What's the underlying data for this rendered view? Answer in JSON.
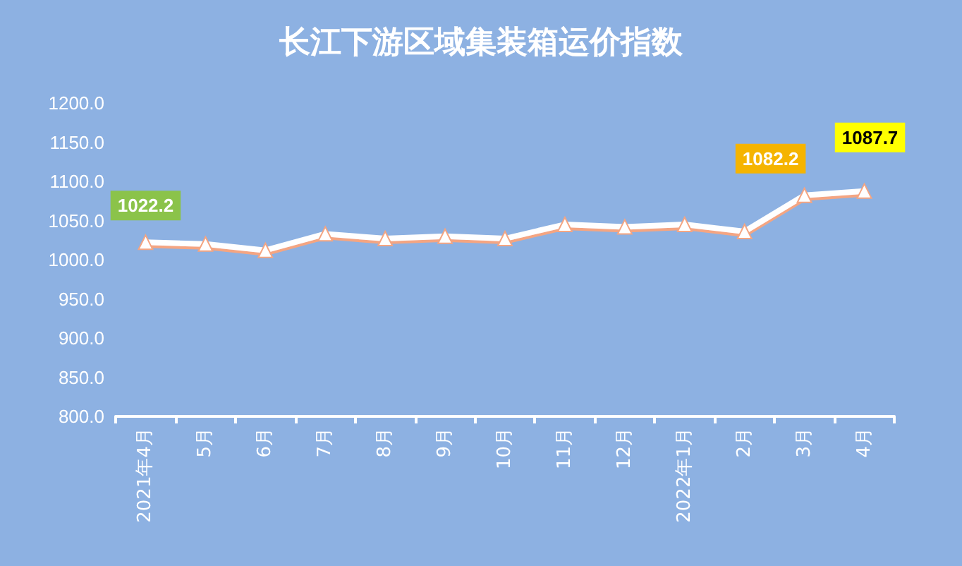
{
  "chart_data": {
    "type": "line",
    "title": "长江下游区域集装箱运价指数",
    "categories": [
      "2021年4月",
      "5月",
      "6月",
      "7月",
      "8月",
      "9月",
      "10月",
      "11月",
      "12月",
      "2022年1月",
      "2月",
      "3月",
      "4月"
    ],
    "series": [
      {
        "color": "#ffffff",
        "values": [
          1022.2,
          1020,
          1012,
          1033,
          1027,
          1030,
          1027,
          1045,
          1042,
          1045,
          1036,
          1082.2,
          1087.7
        ],
        "value_labels": [
          "1022.2",
          null,
          null,
          null,
          null,
          null,
          null,
          null,
          null,
          null,
          null,
          "1082.2",
          "1087.7"
        ]
      }
    ],
    "ylim": [
      800,
      1200
    ],
    "yticks": [
      {
        "value": 800,
        "label": "800.0"
      },
      {
        "value": 850,
        "label": "850.0"
      },
      {
        "value": 900,
        "label": "900.0"
      },
      {
        "value": 950,
        "label": "950.0"
      },
      {
        "value": 1000,
        "label": "1000.0"
      },
      {
        "value": 1050,
        "label": "1050.0"
      },
      {
        "value": 1100,
        "label": "1100.0"
      },
      {
        "value": 1150,
        "label": "1150.0"
      },
      {
        "value": 1200,
        "label": "1200.0"
      }
    ],
    "marker": "triangle",
    "grid": false
  }
}
